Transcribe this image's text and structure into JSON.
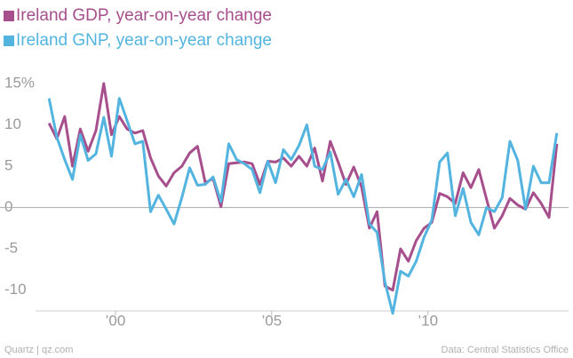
{
  "chart_data": {
    "type": "line",
    "credit": "Quartz | qz.com",
    "source": "Data: Central Statistics Office",
    "x": [
      1997.875,
      1998.125,
      1998.375,
      1998.625,
      1998.875,
      1999.125,
      1999.375,
      1999.625,
      1999.875,
      2000.125,
      2000.375,
      2000.625,
      2000.875,
      2001.125,
      2001.375,
      2001.625,
      2001.875,
      2002.125,
      2002.375,
      2002.625,
      2002.875,
      2003.125,
      2003.375,
      2003.625,
      2003.875,
      2004.125,
      2004.375,
      2004.625,
      2004.875,
      2005.125,
      2005.375,
      2005.625,
      2005.875,
      2006.125,
      2006.375,
      2006.625,
      2006.875,
      2007.125,
      2007.375,
      2007.625,
      2007.875,
      2008.125,
      2008.375,
      2008.625,
      2008.875,
      2009.125,
      2009.375,
      2009.625,
      2009.875,
      2010.125,
      2010.375,
      2010.625,
      2010.875,
      2011.125,
      2011.375,
      2011.625,
      2011.875,
      2012.125,
      2012.375,
      2012.625,
      2012.875,
      2013.125,
      2013.375,
      2013.625,
      2013.875,
      2014.125
    ],
    "series": [
      {
        "name": "Ireland GDP, year-on-year change",
        "color": "#a64f8c",
        "values": [
          10.2,
          8.3,
          11.0,
          5.0,
          9.5,
          6.8,
          9.3,
          15.0,
          8.8,
          11.0,
          9.5,
          9.0,
          9.3,
          6.0,
          3.8,
          2.6,
          4.2,
          5.0,
          6.6,
          7.4,
          3.0,
          3.5,
          0.1,
          5.3,
          5.4,
          5.5,
          5.3,
          2.8,
          5.6,
          5.5,
          6.0,
          5.0,
          6.2,
          5.0,
          7.2,
          3.2,
          8.0,
          5.5,
          2.8,
          4.9,
          2.5,
          -2.5,
          -0.5,
          -9.5,
          -10.0,
          -5.0,
          -6.5,
          -4.0,
          -2.5,
          -1.8,
          1.7,
          1.3,
          0.5,
          4.2,
          2.4,
          4.6,
          1.0,
          -2.5,
          -1.0,
          1.1,
          0.3,
          -0.2,
          1.8,
          0.5,
          -1.2,
          7.7
        ]
      },
      {
        "name": "Ireland GNP, year-on-year change",
        "color": "#52b4df",
        "values": [
          13.2,
          8.5,
          5.8,
          3.4,
          8.8,
          5.7,
          6.5,
          10.9,
          6.2,
          13.2,
          10.5,
          7.7,
          8.0,
          -0.5,
          1.5,
          -0.2,
          -2.0,
          1.2,
          4.8,
          2.7,
          2.8,
          3.7,
          0.7,
          7.7,
          5.8,
          5.3,
          4.6,
          1.8,
          5.6,
          3.0,
          7.0,
          5.8,
          7.5,
          10.0,
          5.0,
          4.6,
          6.7,
          1.6,
          3.4,
          1.3,
          4.0,
          -2.0,
          -3.0,
          -9.0,
          -12.8,
          -7.7,
          -8.3,
          -6.5,
          -3.6,
          -1.5,
          5.5,
          6.6,
          -1.0,
          2.3,
          -1.8,
          -3.3,
          0.0,
          -0.5,
          1.2,
          8.0,
          5.7,
          -0.2,
          5.0,
          3.0,
          3.0,
          9.0
        ]
      }
    ],
    "xlim": [
      1997.5,
      2014.5
    ],
    "xticks": [
      {
        "value": 2000,
        "label": "’00"
      },
      {
        "value": 2005,
        "label": "’05"
      },
      {
        "value": 2010,
        "label": "’10"
      }
    ],
    "ylim": [
      -12.5,
      16.5
    ],
    "yticks": [
      {
        "value": 15,
        "label": "15%"
      },
      10,
      5,
      0,
      -5,
      -10
    ],
    "grid": false
  }
}
